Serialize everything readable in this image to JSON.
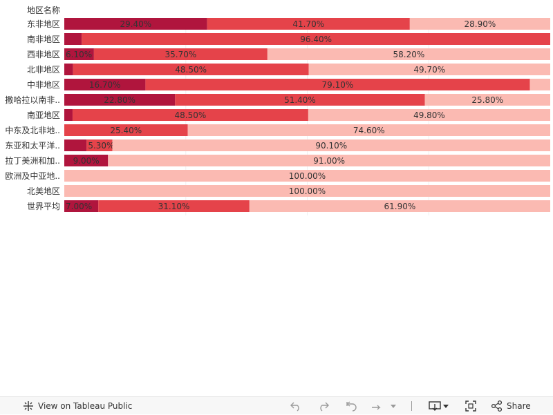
{
  "chart_data": {
    "type": "bar",
    "orientation": "horizontal-stacked-100",
    "column_header": "地区名称",
    "categories": [
      "东非地区",
      "南非地区",
      "西非地区",
      "北非地区",
      "中非地区",
      "撒哈拉以南非..",
      "南亚地区",
      "中东及北非地..",
      "东亚和太平洋..",
      "拉丁美洲和加..",
      "欧洲及中亚地..",
      "北美地区",
      "世界平均"
    ],
    "series": [
      {
        "color": "#b0153d",
        "values": [
          29.4,
          3.6,
          6.1,
          1.8,
          16.7,
          22.8,
          1.7,
          0,
          4.6,
          9.0,
          0,
          0,
          7.0
        ]
      },
      {
        "color": "#e5434a",
        "values": [
          41.7,
          96.4,
          35.7,
          48.5,
          79.1,
          51.4,
          48.5,
          25.4,
          5.3,
          0,
          0,
          0,
          31.1
        ]
      },
      {
        "color": "#fbbab2",
        "values": [
          28.9,
          0,
          58.2,
          49.7,
          4.2,
          25.8,
          49.8,
          74.6,
          90.1,
          91.0,
          100.0,
          100.0,
          61.9
        ]
      }
    ],
    "labels": [
      [
        "29.40%",
        "41.70%",
        "28.90%"
      ],
      [
        "",
        "96.40%",
        ""
      ],
      [
        "6.10%",
        "35.70%",
        "58.20%"
      ],
      [
        "",
        "48.50%",
        "49.70%"
      ],
      [
        "16.70%",
        "79.10%",
        ""
      ],
      [
        "22.80%",
        "51.40%",
        "25.80%"
      ],
      [
        "",
        "48.50%",
        "49.80%"
      ],
      [
        "",
        "25.40%",
        "74.60%"
      ],
      [
        "",
        "5.30%",
        "90.10%"
      ],
      [
        "9.00%",
        "",
        "91.00%"
      ],
      [
        "",
        "",
        "100.00%"
      ],
      [
        "",
        "",
        "100.00%"
      ],
      [
        "7.00%",
        "31.10%",
        "61.90%"
      ]
    ],
    "xlim": [
      0,
      100
    ]
  },
  "toolbar": {
    "view_label": "View on Tableau Public",
    "share_label": "Share",
    "icons": [
      "tableau-logo-icon",
      "undo-icon",
      "redo-icon",
      "revert-icon",
      "refresh-icon",
      "dropdown-arrow-icon",
      "download-icon",
      "fullscreen-icon",
      "share-icon"
    ]
  }
}
